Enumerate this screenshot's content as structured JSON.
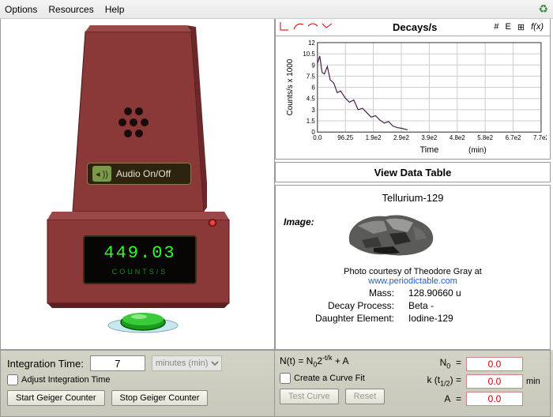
{
  "menu": {
    "options": "Options",
    "resources": "Resources",
    "help": "Help"
  },
  "device": {
    "audio_label": "Audio On/Off",
    "reading": "449.03",
    "reading_unit": "Counts/s",
    "body_color": "#8a3838",
    "body_shadow": "#6a2828",
    "top_color": "#9a4444",
    "led_color": "#ff3030"
  },
  "chart": {
    "title": "Decays/s",
    "ylabel": "Counts/s x 1000",
    "xlabel": "Time",
    "xunit": "(min)",
    "yticks": [
      0,
      1.5,
      3,
      4.5,
      6,
      7.5,
      9,
      10.5,
      12
    ],
    "xticks": [
      "0.0",
      "96.25",
      "1.9e2",
      "2.9e2",
      "3.9e2",
      "4.8e2",
      "5.8e2",
      "6.7e2",
      "7.7e2"
    ],
    "line_color": "#4a1a4a",
    "grid_color": "#cccccc",
    "data": [
      [
        0,
        9.2
      ],
      [
        8,
        10.2
      ],
      [
        16,
        8.0
      ],
      [
        24,
        7.8
      ],
      [
        34,
        8.8
      ],
      [
        44,
        7.0
      ],
      [
        56,
        6.6
      ],
      [
        68,
        5.3
      ],
      [
        80,
        5.5
      ],
      [
        95,
        4.6
      ],
      [
        110,
        4.0
      ],
      [
        125,
        4.3
      ],
      [
        140,
        3.0
      ],
      [
        155,
        3.2
      ],
      [
        170,
        2.6
      ],
      [
        185,
        2.0
      ],
      [
        200,
        2.2
      ],
      [
        215,
        1.6
      ],
      [
        230,
        1.2
      ],
      [
        245,
        1.4
      ],
      [
        260,
        0.8
      ],
      [
        275,
        0.6
      ],
      [
        290,
        0.5
      ],
      [
        310,
        0.3
      ]
    ],
    "xmax": 770,
    "ymax": 12
  },
  "view_table": "View Data Table",
  "element": {
    "name": "Tellurium-129",
    "image_label": "Image:",
    "credit_prefix": "Photo courtesy of Theodore Gray at",
    "credit_link": "www.periodictable.com",
    "mass_label": "Mass:",
    "mass_value": "128.90660 u",
    "decay_label": "Decay Process:",
    "decay_value": "Beta -",
    "daughter_label": "Daughter Element:",
    "daughter_value": "Iodine-129"
  },
  "integration": {
    "label": "Integration Time:",
    "value": "7",
    "unit_selected": "minutes (min)",
    "adjust_label": "Adjust Integration Time",
    "start_btn": "Start Geiger Counter",
    "stop_btn": "Stop Geiger Counter"
  },
  "curvefit": {
    "equation_plain": "N(t) = N₀2⁻ᵗ/ᵏ + A",
    "create_label": "Create a Curve Fit",
    "test_btn": "Test Curve",
    "reset_btn": "Reset",
    "n0_label": "N₀",
    "n0_value": "0.0",
    "k_label": "k (t₁/₂)",
    "k_value": "0.0",
    "k_unit": "min",
    "a_label": "A",
    "a_value": "0.0",
    "input_color": "#c00000"
  }
}
